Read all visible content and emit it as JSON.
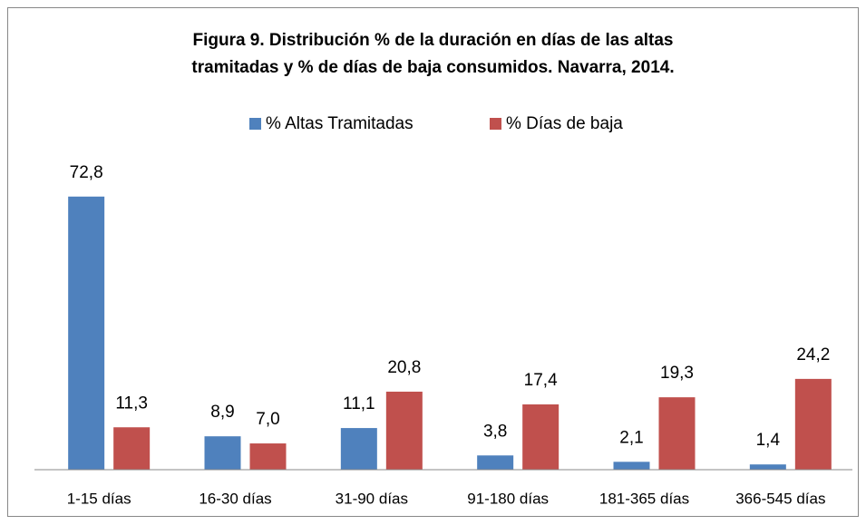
{
  "chart_data": {
    "type": "bar",
    "title": "Figura 9. Distribución % de la duración en días de las altas\ntramitadas y % de días de baja consumidos. Navarra, 2014.",
    "categories": [
      "1-15 días",
      "16-30 días",
      "31-90 días",
      "91-180 días",
      "181-365 días",
      "366-545 días"
    ],
    "series": [
      {
        "name": "% Altas Tramitadas",
        "color": "#4f81bd",
        "values": [
          72.8,
          8.9,
          11.1,
          3.8,
          2.1,
          1.4
        ],
        "value_labels": [
          "72,8",
          "8,9",
          "11,1",
          "3,8",
          "2,1",
          "1,4"
        ]
      },
      {
        "name": "% Días de baja",
        "color": "#c0504d",
        "values": [
          11.3,
          7.0,
          20.8,
          17.4,
          19.3,
          24.2
        ],
        "value_labels": [
          "11,3",
          "7,0",
          "20,8",
          "17,4",
          "19,3",
          "24,2"
        ]
      }
    ],
    "ylim": [
      0,
      80
    ],
    "grid": false,
    "legend": "top"
  }
}
